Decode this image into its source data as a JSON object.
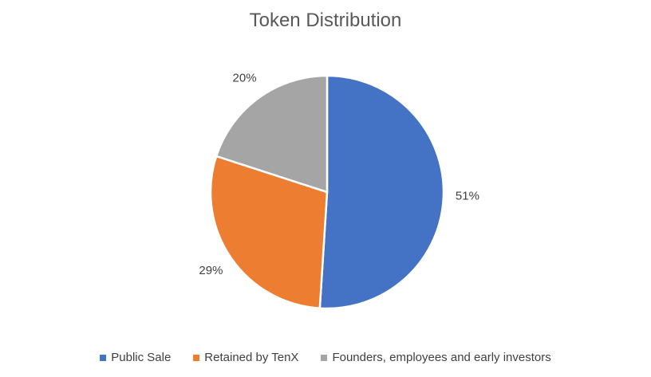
{
  "chart_data": {
    "type": "pie",
    "title": "Token Distribution",
    "categories": [
      "Public Sale",
      "Retained by TenX",
      "Founders, employees and early investors"
    ],
    "values": [
      51,
      29,
      20
    ],
    "labels": [
      "51%",
      "29%",
      "20%"
    ],
    "colors": [
      "#4472C4",
      "#ED7D31",
      "#A5A5A5"
    ],
    "start_angle": "12 o'clock",
    "direction": "clockwise",
    "legend": "bottom"
  }
}
